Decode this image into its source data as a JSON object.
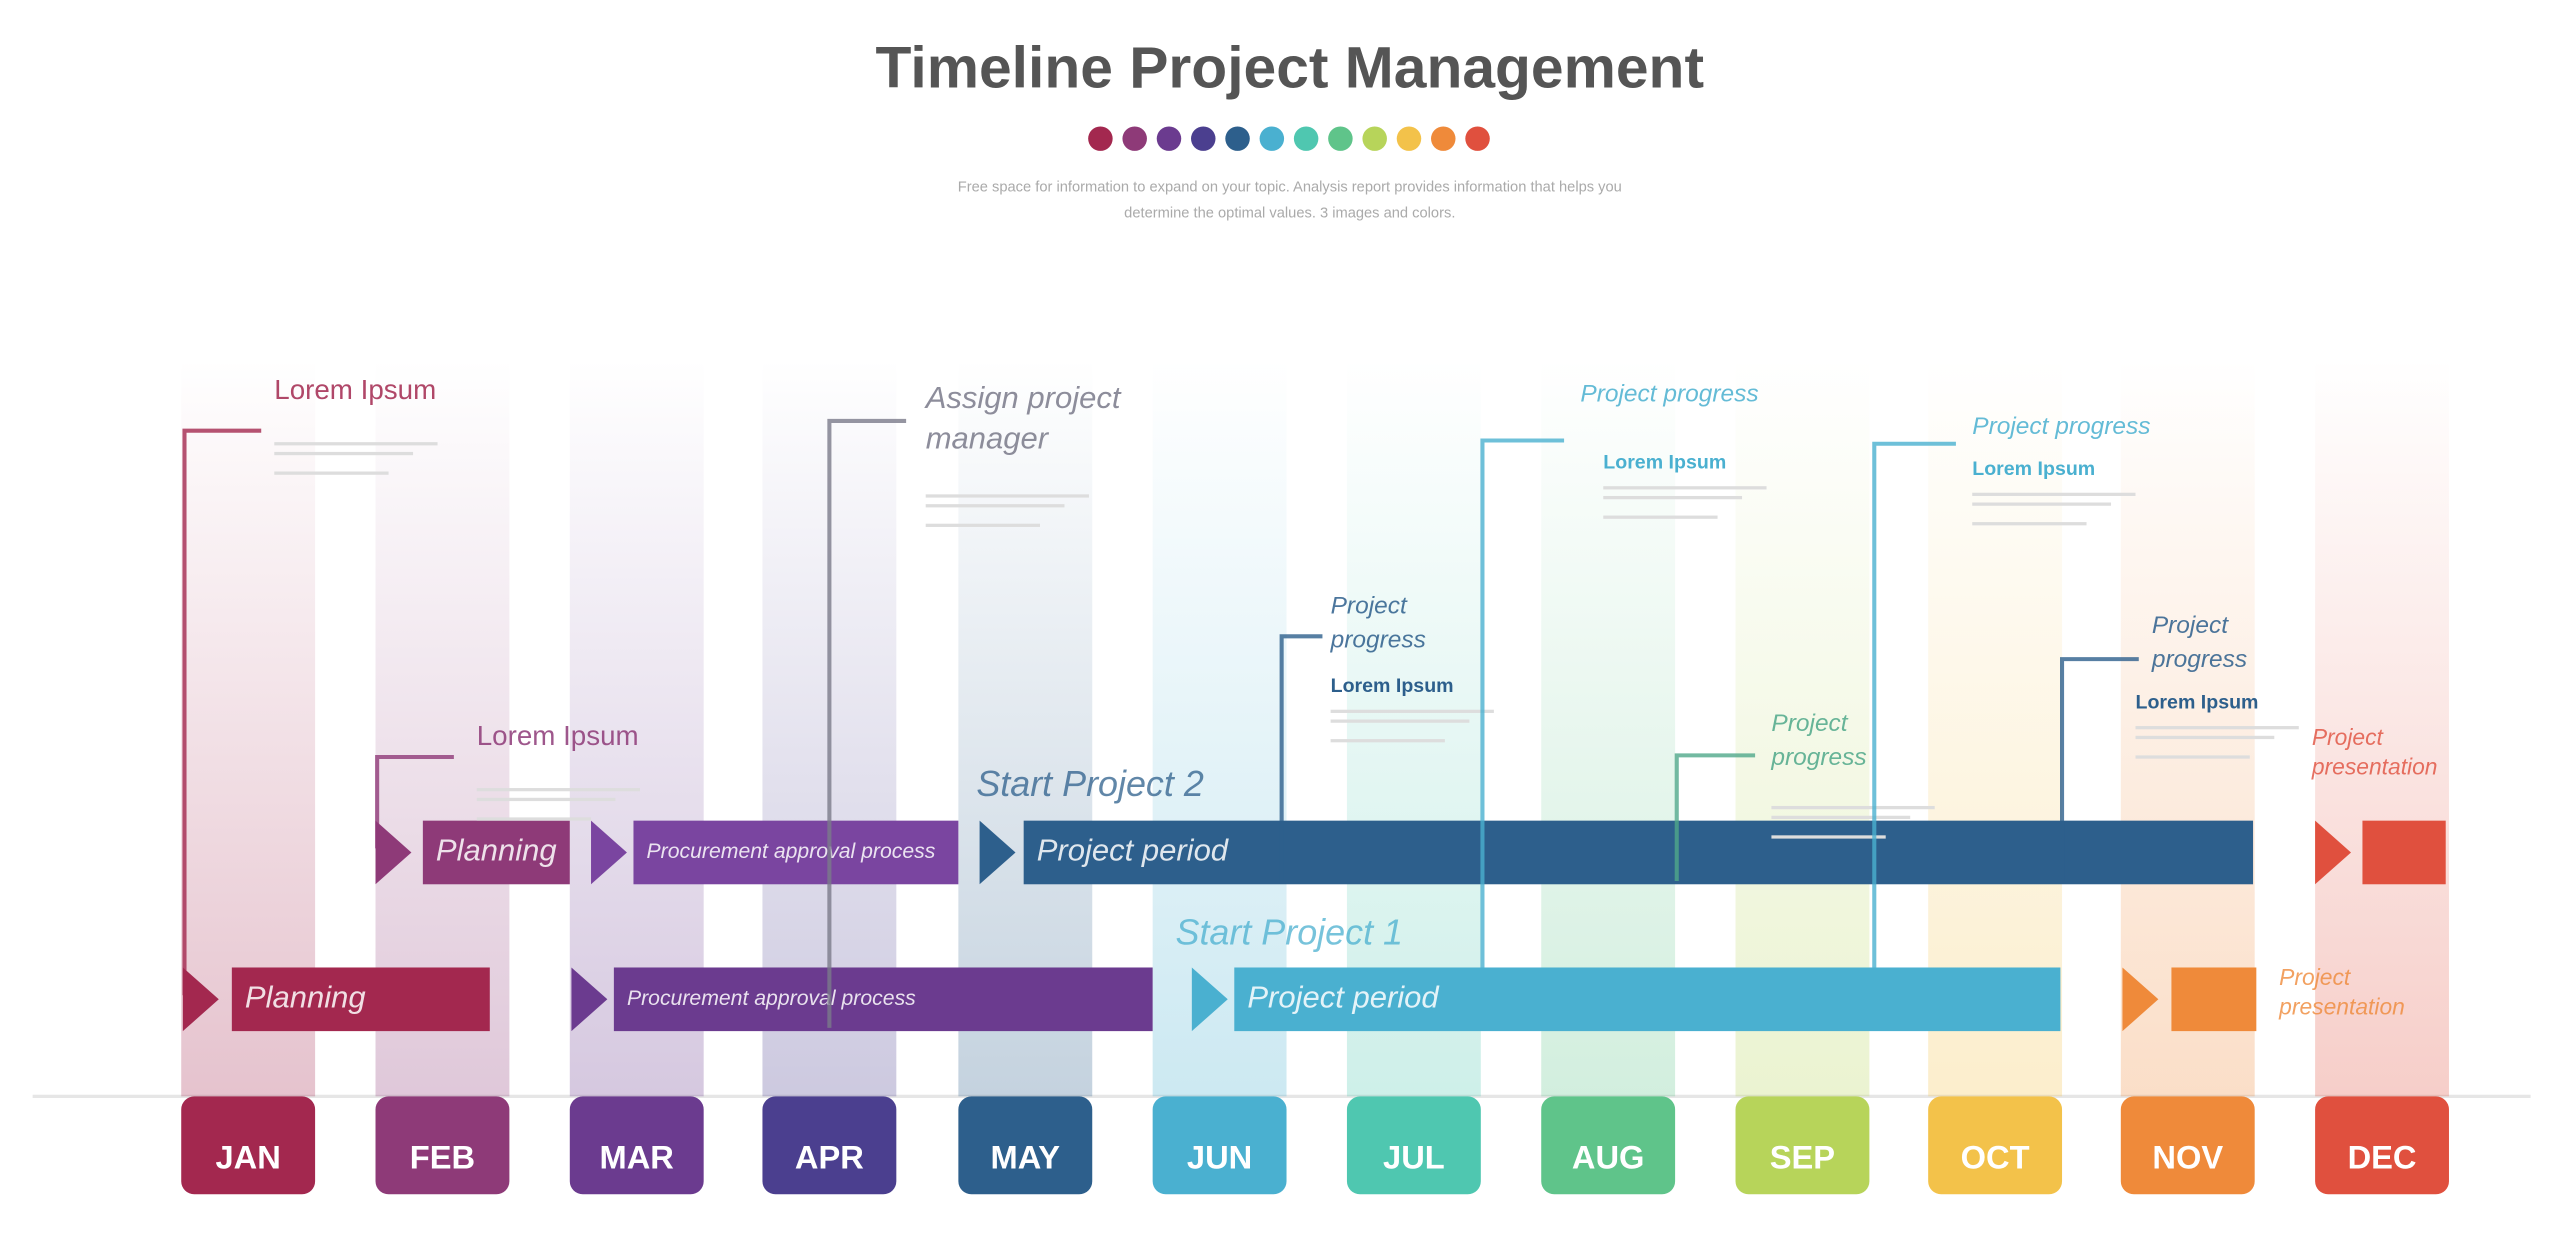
{
  "header": {
    "title": "Timeline Project Management",
    "subtitle": [
      "Free space for information to expand on your topic. Analysis report provides information that helps you",
      "determine the optimal values. 3 images and colors."
    ]
  },
  "months": [
    {
      "label": "JAN",
      "color": "#a3284f"
    },
    {
      "label": "FEB",
      "color": "#8e3a78"
    },
    {
      "label": "MAR",
      "color": "#6b3b8f"
    },
    {
      "label": "APR",
      "color": "#4b3f8f"
    },
    {
      "label": "MAY",
      "color": "#2d5f8c"
    },
    {
      "label": "JUN",
      "color": "#4ab0d0"
    },
    {
      "label": "JUL",
      "color": "#4fc7b0"
    },
    {
      "label": "AUG",
      "color": "#5fc48a"
    },
    {
      "label": "SEP",
      "color": "#b7d45a"
    },
    {
      "label": "OCT",
      "color": "#f3c24a"
    },
    {
      "label": "NOV",
      "color": "#ef8a3a"
    },
    {
      "label": "DEC",
      "color": "#e0503e"
    }
  ],
  "projects": [
    {
      "label": "Start Project 1",
      "tasks": [
        {
          "label": "Planning",
          "color": "#a3284f"
        },
        {
          "label": "Procurement approval process",
          "color": "#6b3b8f"
        },
        {
          "label": "Project period",
          "color": "#4ab0d0"
        },
        {
          "label": [
            "Project",
            "presentation"
          ],
          "color": "#ef8a3a"
        }
      ]
    },
    {
      "label": "Start Project 2",
      "tasks": [
        {
          "label": "Planning",
          "color": "#8e3a78"
        },
        {
          "label": "Procurement approval process",
          "color": "#7a45a0"
        },
        {
          "label": "Project period",
          "color": "#2d5f8c"
        },
        {
          "label": [
            "Project",
            "presentation"
          ],
          "color": "#e0503e"
        }
      ]
    }
  ],
  "annotations": [
    {
      "title": [
        "Lorem Ipsum"
      ],
      "color": "#a3284f"
    },
    {
      "title": [
        "Lorem Ipsum"
      ],
      "color": "#8e3a78"
    },
    {
      "title": [
        "Assign project",
        "manager"
      ],
      "color": "#7a7a8a"
    },
    {
      "title": [
        "Project",
        "progress"
      ],
      "heading": "Lorem Ipsum",
      "color": "#2d5f8c"
    },
    {
      "title": [
        "Project progress"
      ],
      "heading": "Lorem Ipsum",
      "color": "#4ab0d0"
    },
    {
      "title": [
        "Project",
        "progress"
      ],
      "color": "#4fa88a"
    },
    {
      "title": [
        "Project progress"
      ],
      "heading": "Lorem Ipsum",
      "color": "#4ab0d0"
    },
    {
      "title": [
        "Project",
        "progress"
      ],
      "heading": "Lorem Ipsum",
      "color": "#2d5f8c"
    }
  ]
}
